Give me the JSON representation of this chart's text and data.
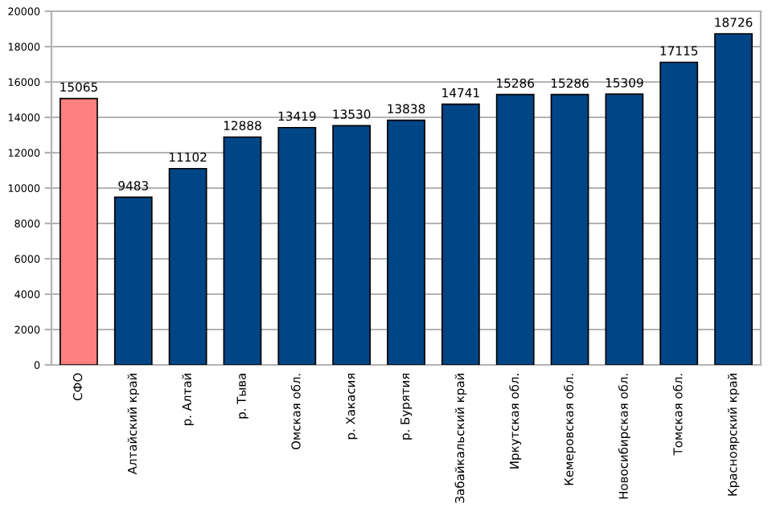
{
  "chart_data": {
    "type": "bar",
    "categories": [
      "СФО",
      "Алтайский край",
      "р. Алтай",
      "р. Тыва",
      "Омская обл.",
      "р. Хакасия",
      "р. Бурятия",
      "Забайкальский край",
      "Иркутская обл.",
      "Кемеровская обл.",
      "Новосибирская обл.",
      "Томская обл.",
      "Красноярский край"
    ],
    "values": [
      15065,
      9483,
      11102,
      12888,
      13419,
      13530,
      13838,
      14741,
      15286,
      15286,
      15309,
      17115,
      18726
    ],
    "colors": [
      "#ff8080",
      "#004586",
      "#004586",
      "#004586",
      "#004586",
      "#004586",
      "#004586",
      "#004586",
      "#004586",
      "#004586",
      "#004586",
      "#004586",
      "#004586"
    ],
    "ylim": [
      0,
      20000
    ],
    "yticks": [
      0,
      2000,
      4000,
      6000,
      8000,
      10000,
      12000,
      14000,
      16000,
      18000,
      20000
    ],
    "grid": "y",
    "data_labels": true,
    "legend": false
  }
}
